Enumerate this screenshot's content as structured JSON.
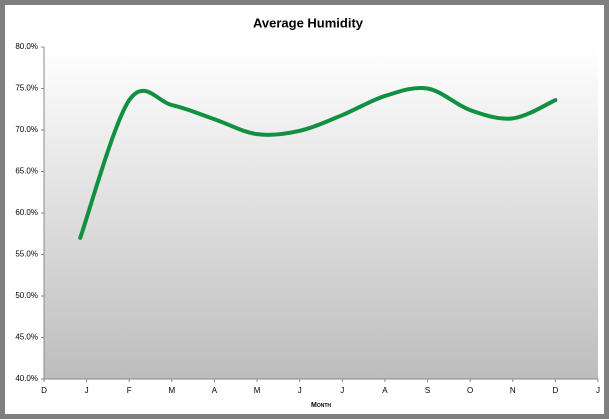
{
  "chart_data": {
    "type": "line",
    "title": "Average Humidity",
    "x_label": "Month",
    "x": [
      0.85,
      2,
      3,
      4,
      5,
      6,
      7,
      8,
      9,
      10,
      11,
      12
    ],
    "series": [
      {
        "name": "Average Humidity",
        "color": "#109040",
        "values": [
          57.0,
          73.6,
          73.0,
          71.3,
          69.5,
          69.9,
          71.8,
          74.1,
          75.0,
          72.4,
          71.4,
          73.6
        ]
      }
    ],
    "xlim": [
      0,
      13
    ],
    "xticks": [
      {
        "value": 0,
        "label": "D"
      },
      {
        "value": 1,
        "label": "J"
      },
      {
        "value": 2,
        "label": "F"
      },
      {
        "value": 3,
        "label": "M"
      },
      {
        "value": 4,
        "label": "A"
      },
      {
        "value": 5,
        "label": "M"
      },
      {
        "value": 6,
        "label": "J"
      },
      {
        "value": 7,
        "label": "J"
      },
      {
        "value": 8,
        "label": "A"
      },
      {
        "value": 9,
        "label": "S"
      },
      {
        "value": 10,
        "label": "O"
      },
      {
        "value": 11,
        "label": "N"
      },
      {
        "value": 12,
        "label": "D"
      },
      {
        "value": 13,
        "label": "J"
      }
    ],
    "ylim": [
      40,
      80
    ],
    "yticks": [
      {
        "value": 40,
        "label": "40.0%"
      },
      {
        "value": 45,
        "label": "45.0%"
      },
      {
        "value": 50,
        "label": "50.0%"
      },
      {
        "value": 55,
        "label": "55.0%"
      },
      {
        "value": 60,
        "label": "60.0%"
      },
      {
        "value": 65,
        "label": "65.0%"
      },
      {
        "value": 70,
        "label": "70.0%"
      },
      {
        "value": 75,
        "label": "75.0%"
      },
      {
        "value": 80,
        "label": "80.0%"
      }
    ],
    "grid": false,
    "smooth": true
  }
}
